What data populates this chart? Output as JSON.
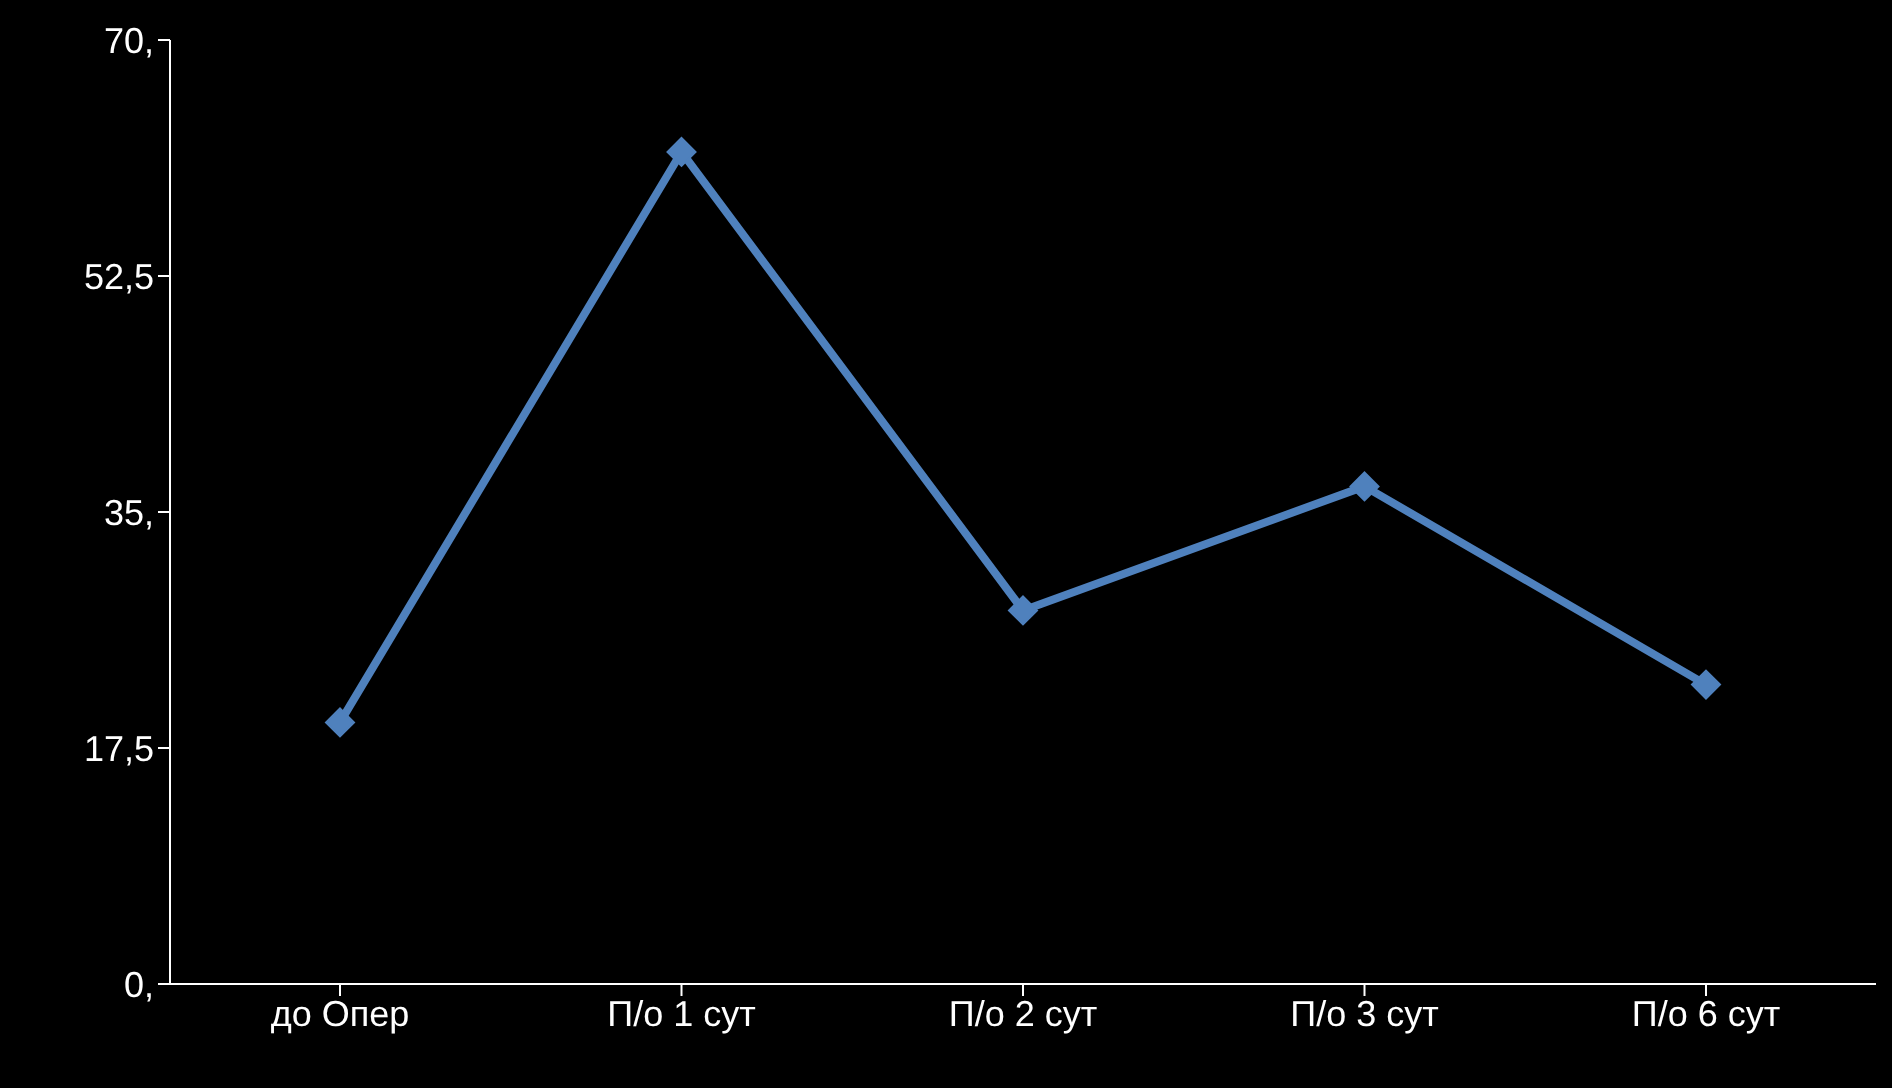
{
  "chart_data": {
    "type": "line",
    "categories": [
      "до Опер",
      "П/о 1 сут",
      "П/о 2 сут",
      "П/о 3 сут",
      "П/о 6 сут"
    ],
    "values": [
      19.4,
      61.7,
      27.7,
      36.9,
      22.2
    ],
    "color": "#4f81bd",
    "marker": "diamond",
    "ylim": [
      0,
      70
    ],
    "yticks": [
      {
        "value": 0,
        "label": "0,"
      },
      {
        "value": 17.5,
        "label": "17,5"
      },
      {
        "value": 35,
        "label": "35,"
      },
      {
        "value": 52.5,
        "label": "52,5"
      },
      {
        "value": 70,
        "label": "70,"
      }
    ]
  }
}
